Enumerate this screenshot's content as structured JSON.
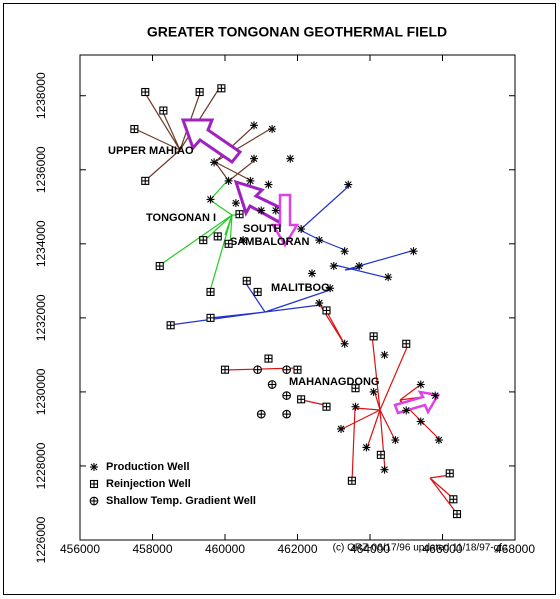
{
  "chart_data": {
    "type": "scatter",
    "title": "GREATER TONGONAN GEOTHERMAL FIELD",
    "xlim": [
      456000,
      468000
    ],
    "ylim": [
      1226000,
      1239100
    ],
    "xticks": [
      456000,
      458000,
      460000,
      462000,
      464000,
      466000,
      468000
    ],
    "yticks": [
      1226000,
      1228000,
      1230000,
      1232000,
      1234000,
      1236000,
      1238000
    ],
    "annotations": [
      "UPPER MAHIAO",
      "TONGONAN I",
      "SOUTH",
      "SAMBALORAN",
      "MALITBOG",
      "MAHANAGDONG"
    ],
    "credit": "(c) ORZ-06/17/96 updated 11/18/97-gfc",
    "series": [
      {
        "name": "Production Well",
        "marker": "asterisk",
        "color": "#000000",
        "x": [
          460800,
          461300,
          460800,
          459700,
          460100,
          460700,
          461200,
          461800,
          461400,
          462100,
          459600,
          460300,
          463400,
          462600,
          463300,
          463000,
          462400,
          462900,
          463700,
          464500,
          465200,
          462600,
          463300,
          464400,
          464100,
          463600,
          464700,
          464400,
          465000,
          465400,
          465800,
          465900,
          463900,
          463200,
          465400,
          460500,
          461000
        ],
        "y": [
          1237200,
          1237100,
          1236300,
          1236200,
          1235700,
          1235700,
          1235600,
          1236300,
          1234900,
          1234400,
          1235200,
          1235100,
          1235600,
          1234100,
          1233800,
          1233400,
          1233200,
          1232800,
          1233400,
          1233100,
          1233800,
          1232400,
          1231300,
          1231000,
          1230000,
          1229600,
          1228700,
          1227900,
          1229500,
          1230200,
          1229900,
          1228700,
          1228500,
          1229000,
          1229200,
          1234100,
          1234900
        ]
      },
      {
        "name": "Reinjection Well",
        "marker": "square-plus",
        "color": "#000000",
        "x": [
          457800,
          458300,
          459300,
          459900,
          457500,
          457800,
          458200,
          459400,
          459800,
          460400,
          460100,
          458500,
          459600,
          459600,
          460600,
          460900,
          460000,
          461200,
          462000,
          462100,
          462800,
          463600,
          464300,
          464100,
          465000,
          466200,
          466300,
          466400,
          463500,
          462800
        ],
        "y": [
          1238100,
          1237600,
          1238100,
          1238200,
          1237100,
          1235700,
          1233400,
          1234100,
          1234200,
          1234800,
          1234000,
          1231800,
          1232700,
          1232000,
          1233000,
          1232700,
          1230600,
          1230900,
          1230600,
          1229800,
          1229600,
          1230100,
          1228300,
          1231500,
          1231300,
          1227800,
          1227100,
          1226700,
          1227600,
          1232200
        ]
      },
      {
        "name": "Shallow Temp. Gradient Well",
        "marker": "circle-plus",
        "color": "#000000",
        "x": [
          460900,
          461700,
          461700,
          461700,
          461000,
          461300
        ],
        "y": [
          1230600,
          1230600,
          1229900,
          1229400,
          1229400,
          1230200
        ]
      }
    ]
  }
}
